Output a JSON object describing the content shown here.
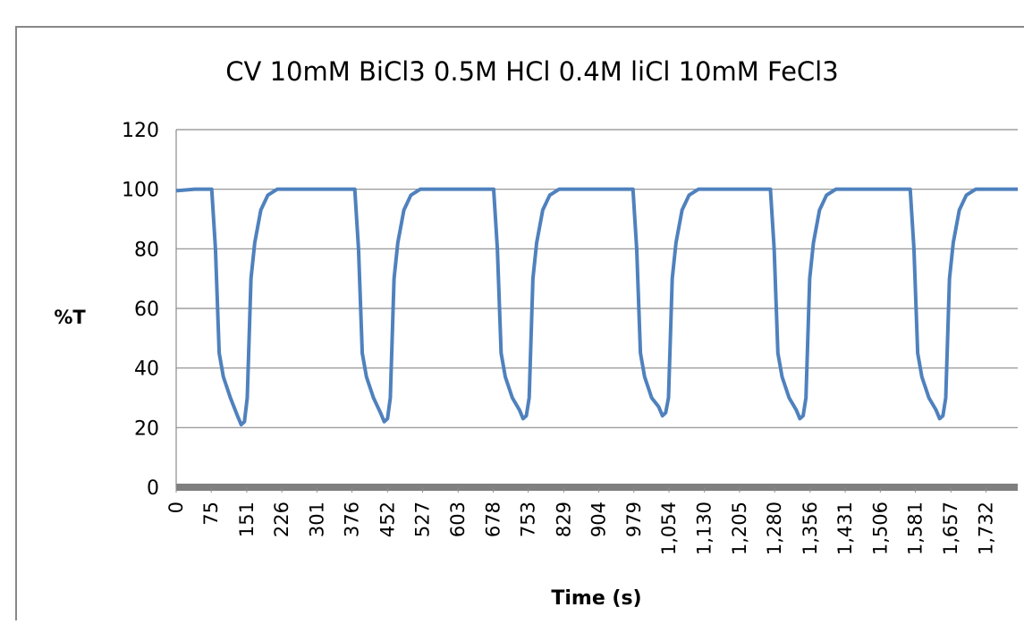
{
  "chart_data": {
    "type": "line",
    "title": "CV 10mM BiCl3 0.5M HCl 0.4M liCl 10mM FeCl3",
    "x_label": "Time (s)",
    "y_label": "%T",
    "x": [
      0,
      40,
      76,
      84,
      92,
      101,
      116,
      131,
      139,
      146,
      152,
      156,
      160,
      168,
      181,
      196,
      216,
      300,
      382,
      390,
      398,
      407,
      422,
      437,
      445,
      452,
      458,
      462,
      466,
      474,
      487,
      502,
      522,
      600,
      679,
      687,
      695,
      704,
      719,
      734,
      742,
      749,
      755,
      759,
      763,
      771,
      784,
      799,
      819,
      900,
      977,
      985,
      993,
      1002,
      1017,
      1032,
      1040,
      1047,
      1053,
      1057,
      1061,
      1069,
      1082,
      1097,
      1117,
      1200,
      1271,
      1279,
      1287,
      1296,
      1311,
      1326,
      1334,
      1341,
      1347,
      1351,
      1355,
      1363,
      1376,
      1391,
      1411,
      1490,
      1570,
      1578,
      1586,
      1595,
      1610,
      1625,
      1633,
      1640,
      1646,
      1650,
      1654,
      1662,
      1675,
      1690,
      1710,
      1800
    ],
    "series": [
      {
        "name": "%T",
        "color": "#4f81bd",
        "values": [
          99.5,
          100,
          100,
          80,
          45,
          37,
          30,
          24,
          21,
          22,
          30,
          50,
          70,
          82,
          93,
          98,
          100,
          100,
          100,
          80,
          45,
          37,
          30,
          25,
          22,
          23,
          30,
          50,
          70,
          82,
          93,
          98,
          100,
          100,
          100,
          80,
          45,
          37,
          30,
          26,
          23,
          24,
          30,
          50,
          70,
          82,
          93,
          98,
          100,
          100,
          100,
          80,
          45,
          37,
          30,
          27,
          24,
          25,
          30,
          50,
          70,
          82,
          93,
          98,
          100,
          100,
          100,
          80,
          45,
          37,
          30,
          26,
          23,
          24,
          30,
          50,
          70,
          82,
          93,
          98,
          100,
          100,
          100,
          80,
          45,
          37,
          30,
          26,
          23,
          24,
          30,
          50,
          70,
          82,
          93,
          98,
          100,
          100
        ]
      }
    ],
    "xlim": [
      0,
      1800
    ],
    "xticks": [
      0,
      75,
      151,
      226,
      301,
      376,
      452,
      527,
      603,
      678,
      753,
      829,
      904,
      979,
      {
        "value": 1054,
        "label": "1,054"
      },
      {
        "value": 1130,
        "label": "1,130"
      },
      {
        "value": 1205,
        "label": "1,205"
      },
      {
        "value": 1280,
        "label": "1,280"
      },
      {
        "value": 1356,
        "label": "1,356"
      },
      {
        "value": 1431,
        "label": "1,431"
      },
      {
        "value": 1506,
        "label": "1,506"
      },
      {
        "value": 1581,
        "label": "1,581"
      },
      {
        "value": 1657,
        "label": "1,657"
      },
      {
        "value": 1732,
        "label": "1,732"
      }
    ],
    "ylim": [
      0,
      120
    ],
    "yticks": [
      0,
      20,
      40,
      60,
      80,
      100,
      120
    ],
    "grid": true
  }
}
